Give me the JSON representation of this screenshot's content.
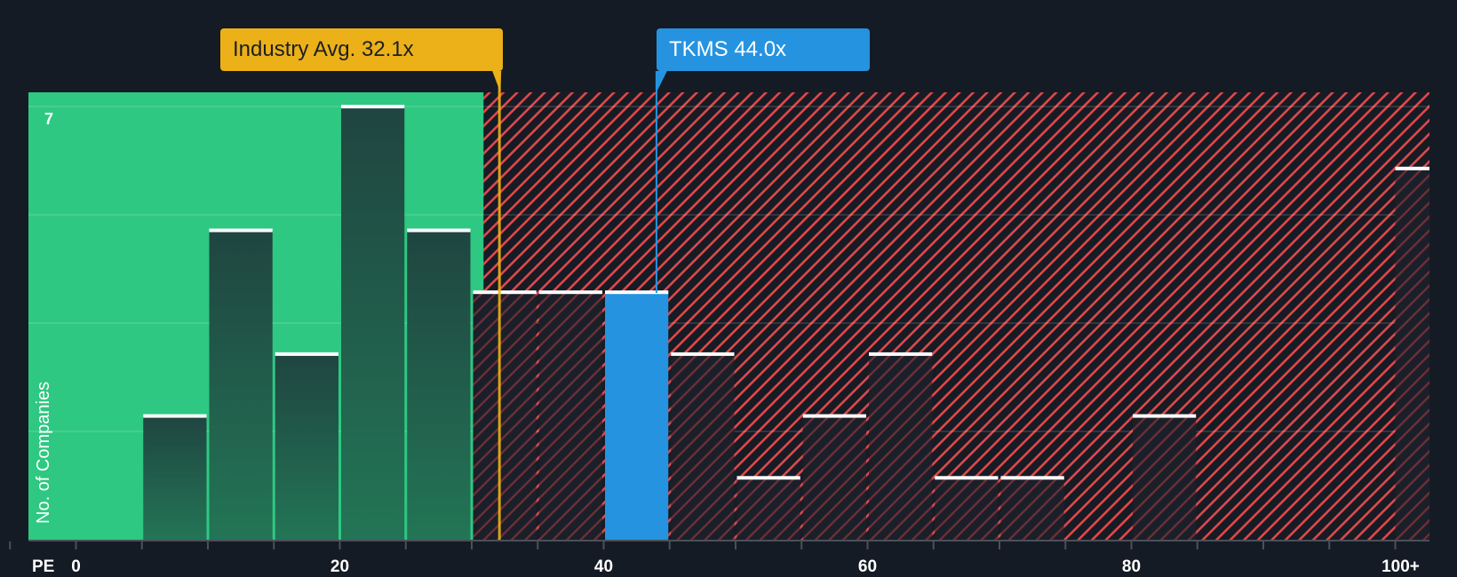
{
  "chart_data": {
    "type": "bar",
    "title": "",
    "xlabel": "PE",
    "ylabel": "No. of Companies",
    "x_ticks": [
      "0",
      "20",
      "40",
      "60",
      "80",
      "100+"
    ],
    "y_tick_label_top": "7",
    "ylim": [
      0,
      7
    ],
    "bin_width": 5,
    "categories": [
      "5-10",
      "10-15",
      "15-20",
      "20-25",
      "25-30",
      "30-35",
      "35-40",
      "40-45",
      "45-50",
      "50-55",
      "55-60",
      "60-65",
      "65-70",
      "70-75",
      "80-85",
      "100+"
    ],
    "bins_start": [
      5,
      10,
      15,
      20,
      25,
      30,
      35,
      40,
      45,
      50,
      55,
      60,
      65,
      70,
      80,
      100
    ],
    "values": [
      2,
      5,
      3,
      7,
      5,
      4,
      4,
      4,
      3,
      1,
      2,
      3,
      1,
      1,
      2,
      6
    ],
    "highlight_bin": "40-45",
    "annotations": [
      {
        "label": "Industry Avg. 32.1x",
        "value": 32.1,
        "color": "#ecb118"
      },
      {
        "label": "TKMS 44.0x",
        "value": 44.0,
        "color": "#2593e0"
      }
    ],
    "regions": [
      {
        "name": "undervalued",
        "from": -3.5,
        "to": 30.9,
        "color": "#2ec882"
      },
      {
        "name": "overvalued",
        "from": 30.9,
        "to": 103,
        "color": "#e0484b",
        "pattern": "diagonal-hatch"
      }
    ],
    "grid": true,
    "legend": null
  },
  "labels": {
    "industry_avg": "Industry Avg. 32.1x",
    "company": "TKMS 44.0x",
    "y_axis": "No. of Companies",
    "y_top": "7",
    "x_axis_prefix": "PE"
  },
  "colors": {
    "background": "#151b24",
    "green": "#2ec882",
    "red_hatch": "#e0484b",
    "industry": "#ecb118",
    "company": "#2593e0"
  }
}
